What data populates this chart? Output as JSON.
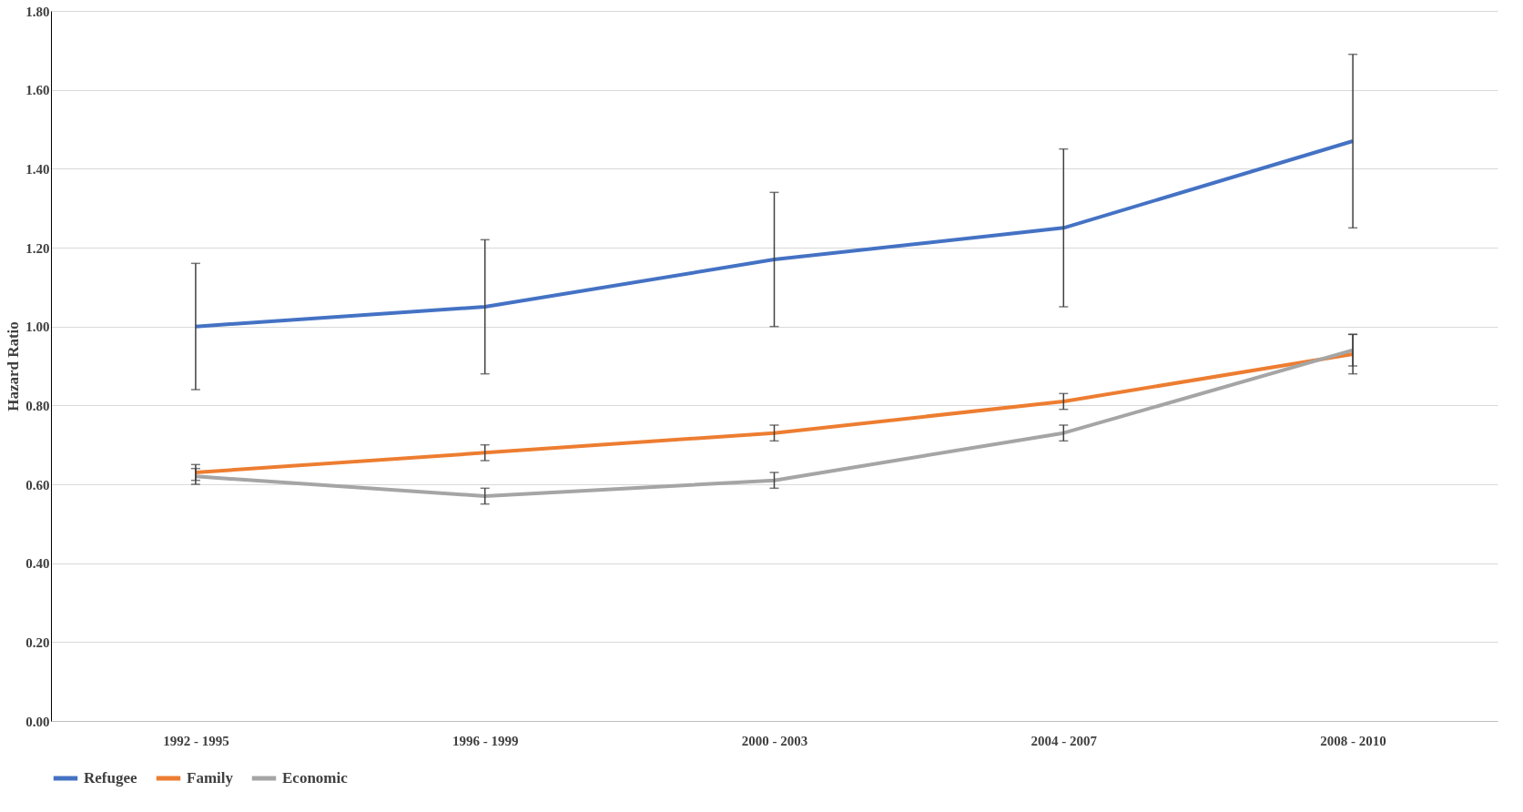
{
  "chart_data": {
    "type": "line",
    "ylabel": "Hazard Ratio",
    "categories": [
      "1992 - 1995",
      "1996 - 1999",
      "2000 - 2003",
      "2004 - 2007",
      "2008 - 2010"
    ],
    "series": [
      {
        "name": "Refugee",
        "color": "#4472c4",
        "values": [
          1.0,
          1.05,
          1.17,
          1.25,
          1.47
        ],
        "errors": [
          [
            0.84,
            1.16
          ],
          [
            0.88,
            1.22
          ],
          [
            1.0,
            1.34
          ],
          [
            1.05,
            1.45
          ],
          [
            1.25,
            1.69
          ]
        ]
      },
      {
        "name": "Family",
        "color": "#ed7d31",
        "values": [
          0.63,
          0.68,
          0.73,
          0.81,
          0.93
        ],
        "errors": [
          [
            0.61,
            0.65
          ],
          [
            0.66,
            0.7
          ],
          [
            0.71,
            0.75
          ],
          [
            0.79,
            0.83
          ],
          [
            0.88,
            0.98
          ]
        ]
      },
      {
        "name": "Economic",
        "color": "#a5a5a5",
        "values": [
          0.62,
          0.57,
          0.61,
          0.73,
          0.94
        ],
        "errors": [
          [
            0.6,
            0.64
          ],
          [
            0.55,
            0.59
          ],
          [
            0.59,
            0.63
          ],
          [
            0.71,
            0.75
          ],
          [
            0.9,
            0.98
          ]
        ]
      }
    ],
    "ylim": [
      0,
      1.8
    ],
    "yticks": [
      {
        "value": 0,
        "label": "0.00"
      },
      {
        "value": 0.2,
        "label": "0.20"
      },
      {
        "value": 0.4,
        "label": "0.40"
      },
      {
        "value": 0.6,
        "label": "0.60"
      },
      {
        "value": 0.8,
        "label": "0.80"
      },
      {
        "value": 1.0,
        "label": "1.00"
      },
      {
        "value": 1.2,
        "label": "1.20"
      },
      {
        "value": 1.4,
        "label": "1.40"
      },
      {
        "value": 1.6,
        "label": "1.60"
      },
      {
        "value": 1.8,
        "label": "1.80"
      }
    ],
    "grid": "y",
    "legend": "bottom",
    "marker": "none",
    "line_style": "solid"
  }
}
